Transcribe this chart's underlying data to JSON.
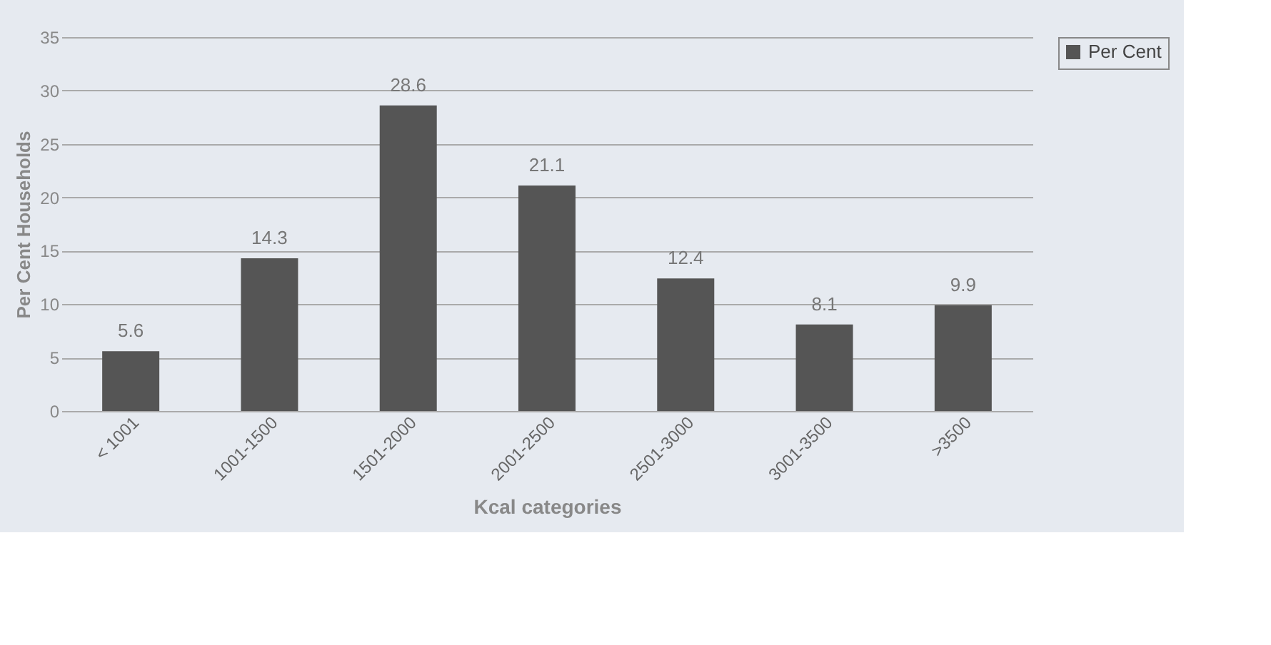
{
  "chart_data": {
    "type": "bar",
    "xlabel": "Kcal categories",
    "ylabel": "Per Cent Households",
    "categories": [
      "< 1001",
      "1001-1500",
      "1501-2000",
      "2001-2500",
      "2501-3000",
      "3001-3500",
      ">3500"
    ],
    "series": [
      {
        "name": "Per Cent",
        "color": "#555555",
        "values": [
          5.6,
          14.3,
          28.6,
          21.1,
          12.4,
          8.1,
          9.9
        ]
      }
    ],
    "ylim": [
      0,
      35
    ],
    "yticks": [
      0,
      5,
      10,
      15,
      20,
      25,
      30,
      35
    ],
    "grid": "y",
    "data_labels": true,
    "legend": "right"
  }
}
